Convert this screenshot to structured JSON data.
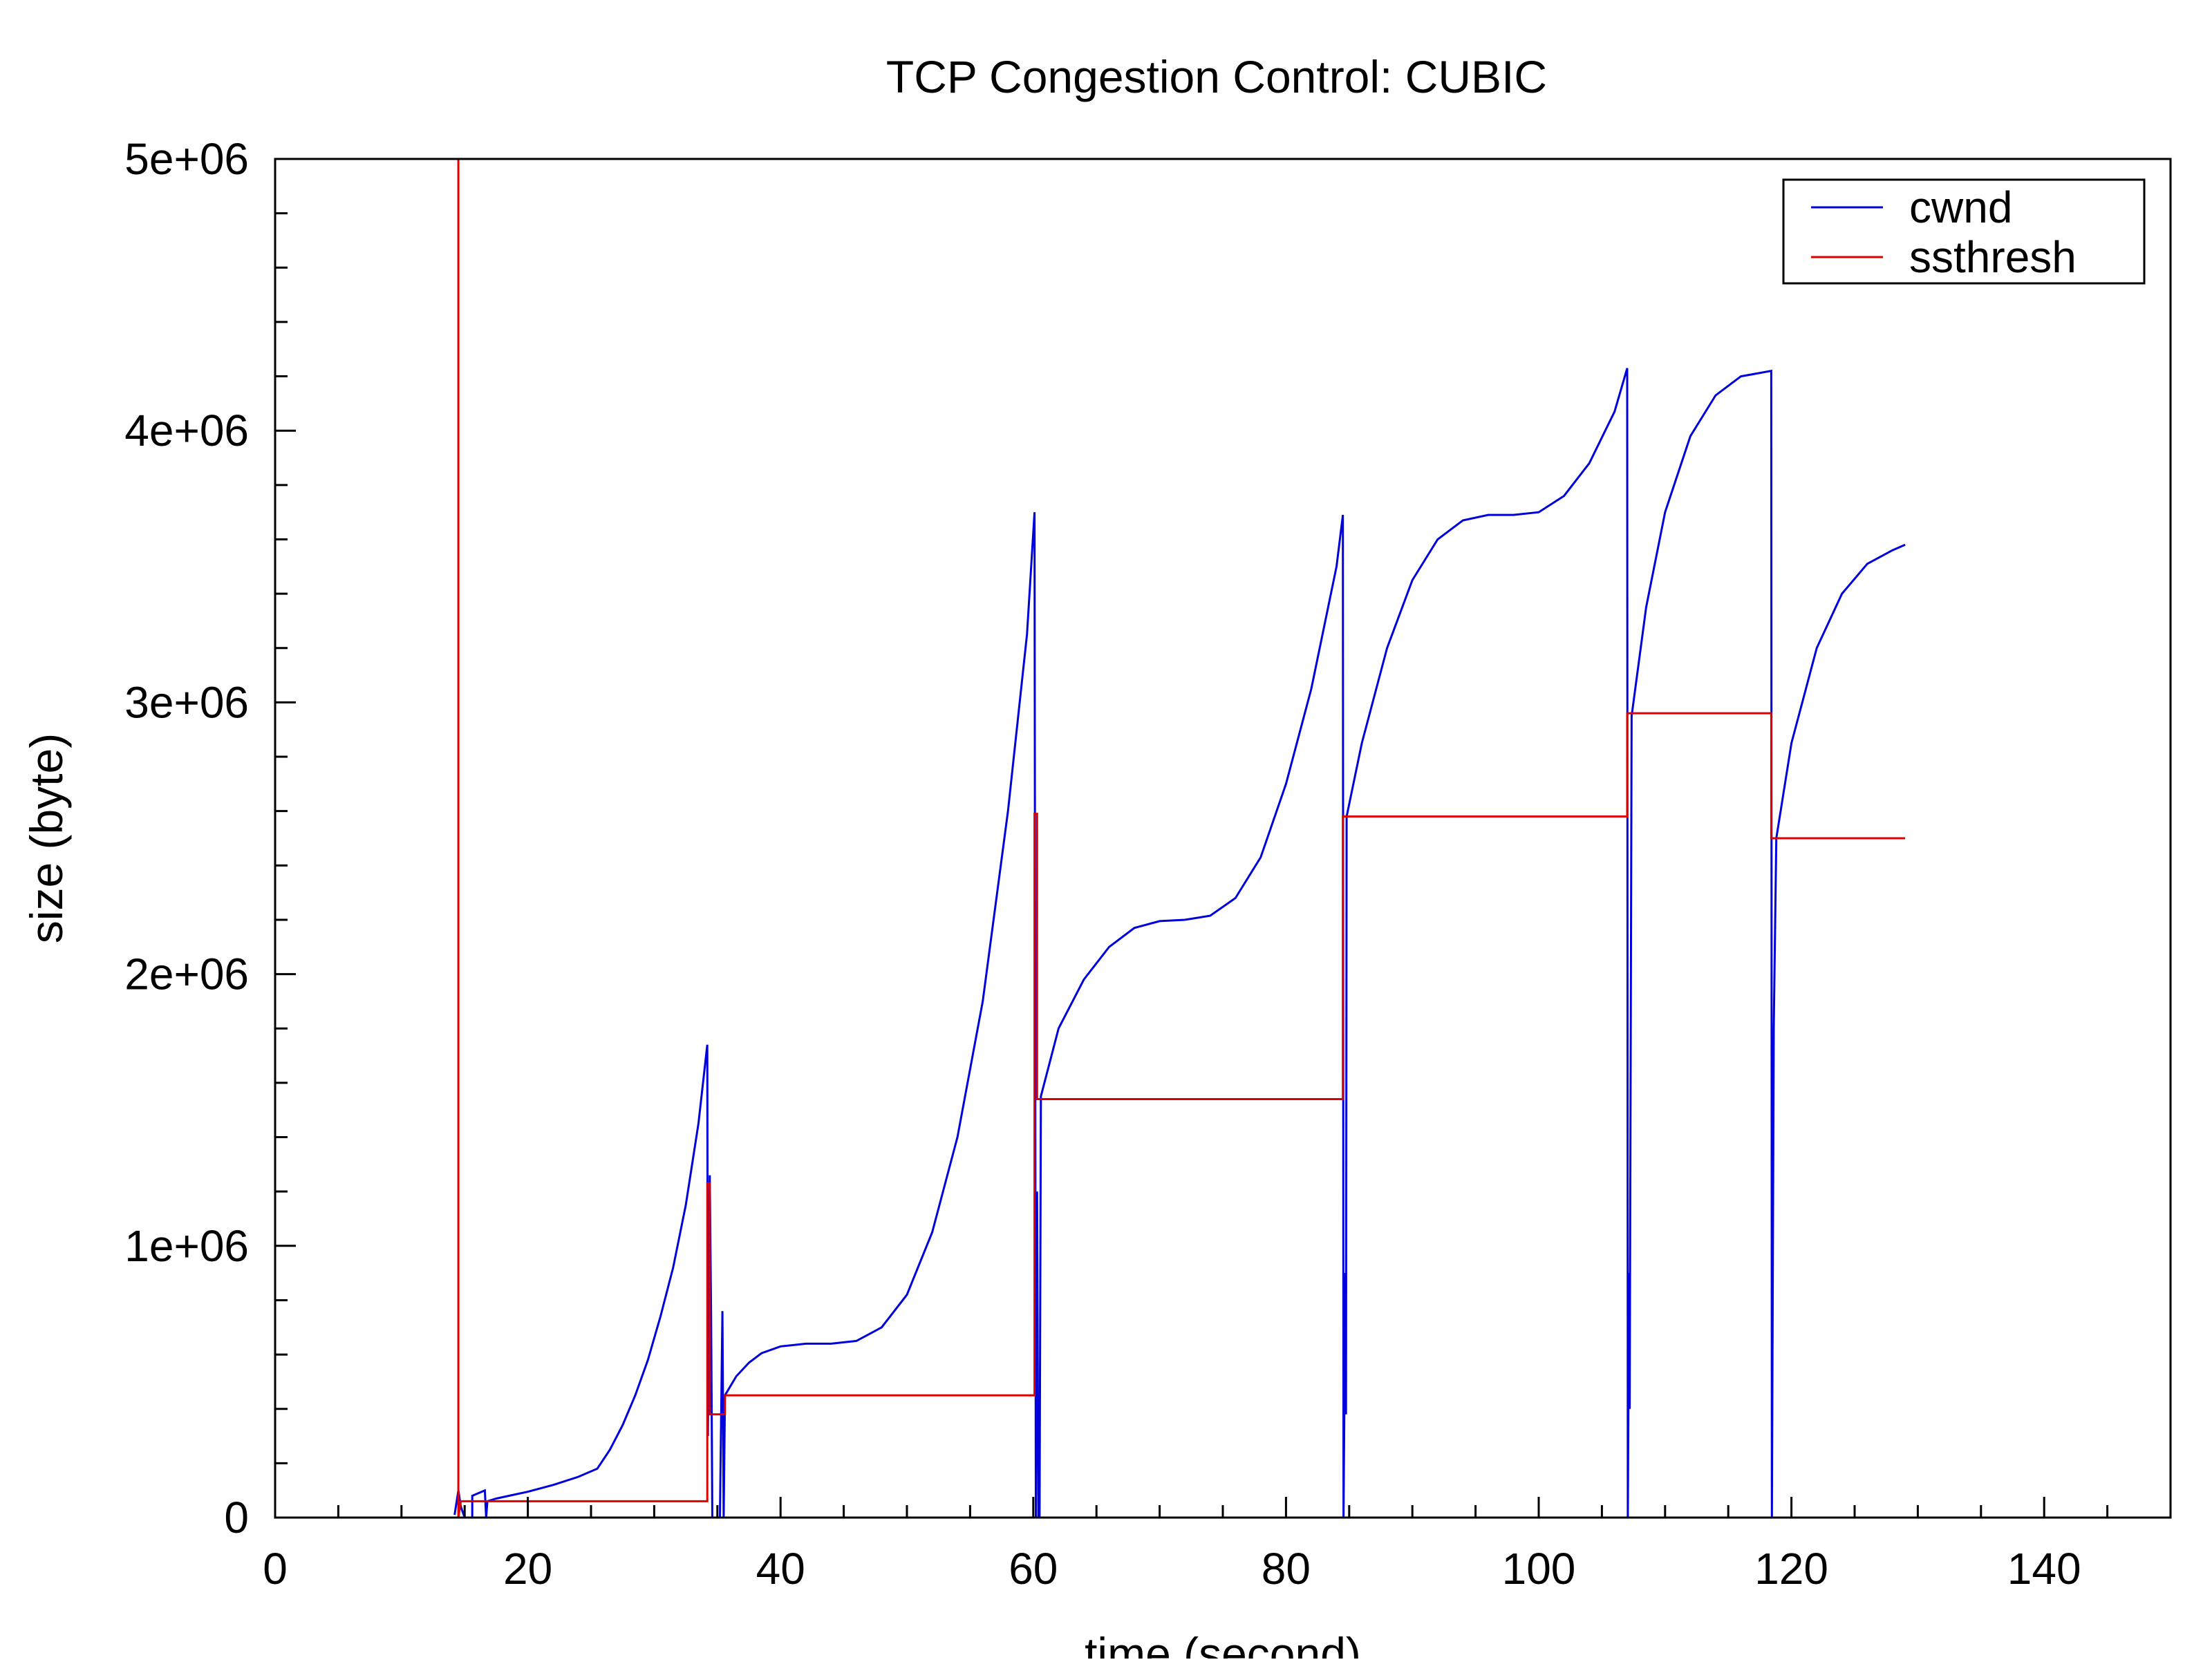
{
  "chart_data": {
    "type": "line",
    "title": "TCP Congestion Control: CUBIC",
    "xlabel": "time (second)",
    "ylabel": "size (byte)",
    "xlim": [
      0,
      150
    ],
    "ylim": [
      0,
      5000000
    ],
    "x_ticks": [
      0,
      20,
      40,
      60,
      80,
      100,
      120,
      140
    ],
    "x_tick_labels": [
      "0",
      "20",
      "40",
      "60",
      "80",
      "100",
      "120",
      "140"
    ],
    "y_ticks": [
      0,
      1000000,
      2000000,
      3000000,
      4000000,
      5000000
    ],
    "y_tick_labels": [
      "0",
      "1e+06",
      "2e+06",
      "3e+06",
      "4e+06",
      "5e+06"
    ],
    "grid": false,
    "legend_position": "top-right",
    "series": [
      {
        "name": "cwnd",
        "color": "#0000dd",
        "points": [
          [
            14.2,
            10000
          ],
          [
            14.5,
            100000
          ],
          [
            14.7,
            40000
          ],
          [
            15.0,
            0
          ],
          [
            15.6,
            0
          ],
          [
            15.6,
            80000
          ],
          [
            16.6,
            100000
          ],
          [
            16.7,
            0
          ],
          [
            16.8,
            60000
          ],
          [
            17.5,
            70000
          ],
          [
            18.5,
            80000
          ],
          [
            20,
            95000
          ],
          [
            22,
            120000
          ],
          [
            24,
            150000
          ],
          [
            25.5,
            180000
          ],
          [
            26.5,
            250000
          ],
          [
            27.5,
            340000
          ],
          [
            28.5,
            450000
          ],
          [
            29.5,
            580000
          ],
          [
            30.5,
            740000
          ],
          [
            31.5,
            920000
          ],
          [
            32.5,
            1150000
          ],
          [
            33.5,
            1450000
          ],
          [
            34.2,
            1740000
          ],
          [
            34.25,
            300000
          ],
          [
            34.4,
            1260000
          ],
          [
            34.5,
            750000
          ],
          [
            34.6,
            0
          ],
          [
            35.2,
            0
          ],
          [
            35.4,
            760000
          ],
          [
            35.5,
            0
          ],
          [
            35.6,
            450000
          ],
          [
            36.5,
            520000
          ],
          [
            37.5,
            570000
          ],
          [
            38.5,
            605000
          ],
          [
            40,
            630000
          ],
          [
            42,
            640000
          ],
          [
            44,
            640000
          ],
          [
            46,
            650000
          ],
          [
            48,
            700000
          ],
          [
            50,
            820000
          ],
          [
            52,
            1050000
          ],
          [
            54,
            1400000
          ],
          [
            56,
            1900000
          ],
          [
            58,
            2600000
          ],
          [
            59.5,
            3250000
          ],
          [
            60.1,
            3700000
          ],
          [
            60.2,
            0
          ],
          [
            60.3,
            1200000
          ],
          [
            60.4,
            0
          ],
          [
            60.5,
            0
          ],
          [
            60.6,
            1550000
          ],
          [
            62,
            1800000
          ],
          [
            64,
            1980000
          ],
          [
            66,
            2100000
          ],
          [
            68,
            2170000
          ],
          [
            70,
            2195000
          ],
          [
            72,
            2200000
          ],
          [
            74,
            2215000
          ],
          [
            76,
            2280000
          ],
          [
            78,
            2430000
          ],
          [
            80,
            2700000
          ],
          [
            82,
            3050000
          ],
          [
            84,
            3500000
          ],
          [
            84.5,
            3690000
          ],
          [
            84.55,
            0
          ],
          [
            84.7,
            900000
          ],
          [
            84.75,
            380000
          ],
          [
            84.8,
            2580000
          ],
          [
            86,
            2850000
          ],
          [
            88,
            3200000
          ],
          [
            90,
            3450000
          ],
          [
            92,
            3600000
          ],
          [
            94,
            3670000
          ],
          [
            96,
            3690000
          ],
          [
            98,
            3690000
          ],
          [
            100,
            3700000
          ],
          [
            102,
            3760000
          ],
          [
            104,
            3880000
          ],
          [
            106,
            4070000
          ],
          [
            107,
            4230000
          ],
          [
            107.05,
            0
          ],
          [
            107.15,
            900000
          ],
          [
            107.2,
            400000
          ],
          [
            107.35,
            2950000
          ],
          [
            108.5,
            3350000
          ],
          [
            110,
            3700000
          ],
          [
            112,
            3980000
          ],
          [
            114,
            4130000
          ],
          [
            116,
            4200000
          ],
          [
            118.4,
            4220000
          ],
          [
            118.45,
            0
          ],
          [
            118.6,
            1800000
          ],
          [
            118.8,
            2500000
          ],
          [
            120,
            2850000
          ],
          [
            122,
            3200000
          ],
          [
            124,
            3400000
          ],
          [
            126,
            3510000
          ],
          [
            128,
            3560000
          ],
          [
            129,
            3580000
          ]
        ]
      },
      {
        "name": "ssthresh",
        "color": "#dd0000",
        "points": [
          [
            14.5,
            5000000
          ],
          [
            14.5,
            0
          ],
          [
            14.7,
            60000
          ],
          [
            16.7,
            60000
          ],
          [
            34.2,
            60000
          ],
          [
            34.2,
            1230000
          ],
          [
            34.4,
            1230000
          ],
          [
            34.4,
            380000
          ],
          [
            35.6,
            380000
          ],
          [
            35.6,
            450000
          ],
          [
            60.1,
            450000
          ],
          [
            60.1,
            2590000
          ],
          [
            60.3,
            2590000
          ],
          [
            60.3,
            1540000
          ],
          [
            84.5,
            1540000
          ],
          [
            84.5,
            2580000
          ],
          [
            107,
            2580000
          ],
          [
            107,
            2960000
          ],
          [
            118.4,
            2960000
          ],
          [
            118.4,
            2500000
          ],
          [
            129,
            2500000
          ]
        ]
      }
    ]
  }
}
